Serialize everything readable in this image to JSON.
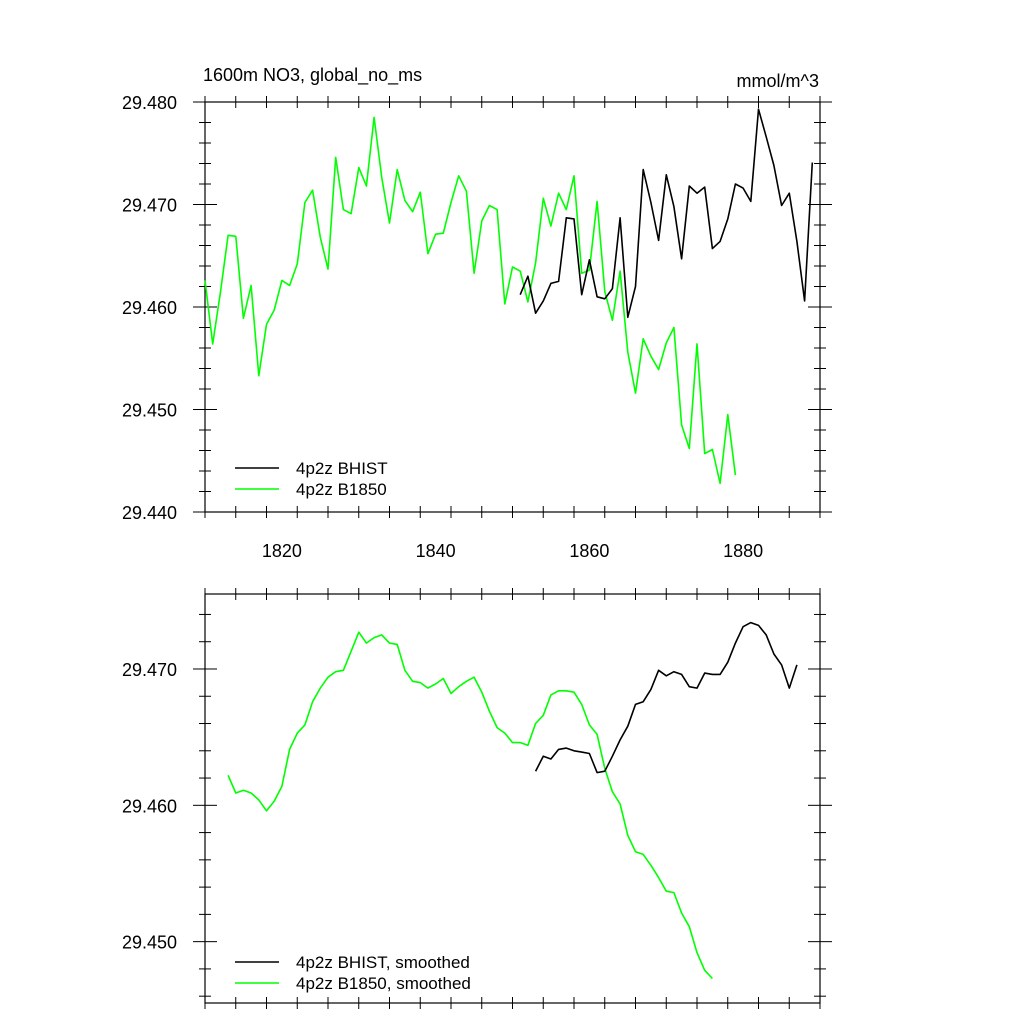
{
  "chart_data": [
    {
      "type": "line",
      "title": "1600m NO3, global_no_ms",
      "units": "mmol/m^3",
      "xlim": [
        1810,
        1890
      ],
      "ylim": [
        29.44,
        29.48
      ],
      "x_ticks": [
        1820,
        1840,
        1860,
        1880
      ],
      "x_tick_labels": [
        "1820",
        "1840",
        "1860",
        "1880"
      ],
      "y_ticks": [
        29.44,
        29.45,
        29.46,
        29.47,
        29.48
      ],
      "y_tick_labels": [
        "29.440",
        "29.450",
        "29.460",
        "29.470",
        "29.480"
      ],
      "grid": false,
      "legend_position": "bottom-left",
      "series": [
        {
          "name": "4p2z BHIST",
          "color": "#000000",
          "x": [
            1851,
            1852,
            1853,
            1854,
            1855,
            1856,
            1857,
            1858,
            1859,
            1860,
            1861,
            1862,
            1863,
            1864,
            1865,
            1866,
            1867,
            1868,
            1869,
            1870,
            1871,
            1872,
            1873,
            1874,
            1875,
            1876,
            1877,
            1878,
            1879,
            1880,
            1881,
            1882,
            1883,
            1884,
            1885,
            1886,
            1887,
            1888,
            1889
          ],
          "y": [
            29.4612,
            29.463,
            29.4594,
            29.4606,
            29.4623,
            29.4625,
            29.4687,
            29.4686,
            29.4612,
            29.4646,
            29.461,
            29.4608,
            29.4618,
            29.4687,
            29.459,
            29.462,
            29.4734,
            29.4702,
            29.4665,
            29.4729,
            29.4698,
            29.4647,
            29.4718,
            29.4711,
            29.4717,
            29.4657,
            29.4664,
            29.4686,
            29.472,
            29.4716,
            29.4703,
            29.4793,
            29.4766,
            29.4738,
            29.4699,
            29.4711,
            29.4664,
            29.4606,
            29.4741
          ]
        },
        {
          "name": "4p2z B1850",
          "color": "#00ff00",
          "x": [
            1810,
            1811,
            1812,
            1813,
            1814,
            1815,
            1816,
            1817,
            1818,
            1819,
            1820,
            1821,
            1822,
            1823,
            1824,
            1825,
            1826,
            1827,
            1828,
            1829,
            1830,
            1831,
            1832,
            1833,
            1834,
            1835,
            1836,
            1837,
            1838,
            1839,
            1840,
            1841,
            1842,
            1843,
            1844,
            1845,
            1846,
            1847,
            1848,
            1849,
            1850,
            1851,
            1852,
            1853,
            1854,
            1855,
            1856,
            1857,
            1858,
            1859,
            1860,
            1861,
            1862,
            1863,
            1864,
            1865,
            1866,
            1867,
            1868,
            1869,
            1870,
            1871,
            1872,
            1873,
            1874,
            1875,
            1876,
            1877,
            1878,
            1879
          ],
          "y": [
            29.4626,
            29.4564,
            29.4614,
            29.467,
            29.4669,
            29.4589,
            29.4621,
            29.4533,
            29.4583,
            29.4597,
            29.4626,
            29.4621,
            29.4642,
            29.4702,
            29.4714,
            29.4668,
            29.4637,
            29.4746,
            29.4695,
            29.4691,
            29.4736,
            29.4718,
            29.4785,
            29.4726,
            29.4682,
            29.4734,
            29.4704,
            29.4693,
            29.4712,
            29.4652,
            29.4671,
            29.4672,
            29.4702,
            29.4728,
            29.4713,
            29.4633,
            29.4684,
            29.4699,
            29.4695,
            29.4603,
            29.4639,
            29.4635,
            29.4605,
            29.4643,
            29.4706,
            29.4679,
            29.4711,
            29.4695,
            29.4728,
            29.4633,
            29.4636,
            29.4703,
            29.4615,
            29.4587,
            29.4635,
            29.4556,
            29.4516,
            29.4569,
            29.4552,
            29.4539,
            29.4565,
            29.458,
            29.4485,
            29.4462,
            29.4564,
            29.4457,
            29.4461,
            29.4428,
            29.4495,
            29.4436
          ]
        }
      ]
    },
    {
      "type": "line",
      "xlim": [
        1810,
        1890
      ],
      "ylim": [
        29.4455,
        29.4755
      ],
      "x_ticks": [
        1820,
        1840,
        1860,
        1880
      ],
      "y_ticks": [
        29.45,
        29.46,
        29.47
      ],
      "y_tick_labels": [
        "29.450",
        "29.460",
        "29.470"
      ],
      "grid": false,
      "legend_position": "bottom-left",
      "series": [
        {
          "name": "4p2z BHIST, smoothed",
          "color": "#000000",
          "x": [
            1853,
            1854,
            1855,
            1856,
            1857,
            1858,
            1859,
            1860,
            1861,
            1862,
            1863,
            1864,
            1865,
            1866,
            1867,
            1868,
            1869,
            1870,
            1871,
            1872,
            1873,
            1874,
            1875,
            1876,
            1877,
            1878,
            1879,
            1880,
            1881,
            1882,
            1883,
            1884,
            1885,
            1886,
            1887
          ],
          "y": [
            29.4625,
            29.4636,
            29.4634,
            29.4641,
            29.4642,
            29.464,
            29.4639,
            29.4638,
            29.4624,
            29.4625,
            29.4636,
            29.4648,
            29.4658,
            29.4674,
            29.4676,
            29.4685,
            29.4699,
            29.4695,
            29.4698,
            29.4696,
            29.4687,
            29.4686,
            29.4697,
            29.4696,
            29.4696,
            29.4705,
            29.4719,
            29.4731,
            29.4734,
            29.4732,
            29.4725,
            29.4711,
            29.4703,
            29.4686,
            29.4703
          ]
        },
        {
          "name": "4p2z B1850, smoothed",
          "color": "#00ff00",
          "x": [
            1813,
            1814,
            1815,
            1816,
            1817,
            1818,
            1819,
            1820,
            1821,
            1822,
            1823,
            1824,
            1825,
            1826,
            1827,
            1828,
            1829,
            1830,
            1831,
            1832,
            1833,
            1834,
            1835,
            1836,
            1837,
            1838,
            1839,
            1840,
            1841,
            1842,
            1843,
            1844,
            1845,
            1846,
            1847,
            1848,
            1849,
            1850,
            1851,
            1852,
            1853,
            1854,
            1855,
            1856,
            1857,
            1858,
            1859,
            1860,
            1861,
            1862,
            1863,
            1864,
            1865,
            1866,
            1867,
            1868,
            1869,
            1870,
            1871,
            1872,
            1873,
            1874,
            1875,
            1876
          ],
          "y": [
            29.4622,
            29.4609,
            29.4611,
            29.4609,
            29.4604,
            29.4596,
            29.4603,
            29.4614,
            29.4641,
            29.4653,
            29.4659,
            29.4676,
            29.4686,
            29.4694,
            29.4698,
            29.4699,
            29.4713,
            29.4727,
            29.4719,
            29.4723,
            29.4725,
            29.4719,
            29.4718,
            29.4699,
            29.4691,
            29.469,
            29.4686,
            29.4689,
            29.4693,
            29.4682,
            29.4687,
            29.4691,
            29.4694,
            29.4683,
            29.4669,
            29.4657,
            29.4653,
            29.4646,
            29.4646,
            29.4644,
            29.466,
            29.4666,
            29.4681,
            29.4684,
            29.4684,
            29.4683,
            29.4674,
            29.4659,
            29.4652,
            29.4627,
            29.461,
            29.4601,
            29.4578,
            29.4566,
            29.4564,
            29.4556,
            29.4547,
            29.4537,
            29.4536,
            29.4521,
            29.4511,
            29.4492,
            29.4479,
            29.4473
          ]
        }
      ]
    }
  ]
}
